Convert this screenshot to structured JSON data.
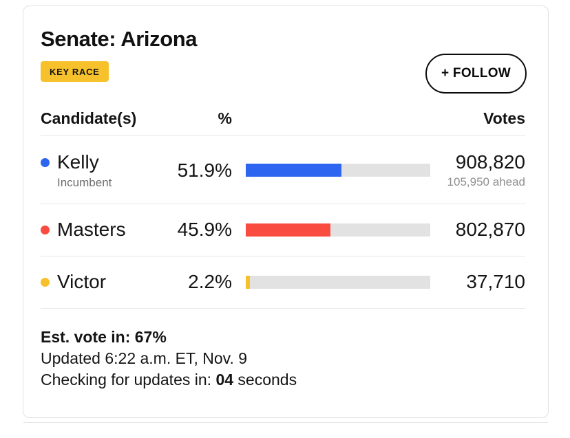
{
  "race": {
    "title": "Senate: Arizona",
    "badge": {
      "label": "KEY RACE",
      "color": "#F6C12B"
    },
    "follow_button": "+ FOLLOW",
    "table": {
      "headers": {
        "candidate": "Candidate(s)",
        "percent": "%",
        "votes": "Votes"
      },
      "track_color": "#E2E2E2",
      "candidates": [
        {
          "name": "Kelly",
          "note": "Incumbent",
          "percent": "51.9%",
          "bar_width": "51.9%",
          "color": "#2D64F0",
          "votes": "908,820",
          "margin_note": "105,950 ahead"
        },
        {
          "name": "Masters",
          "percent": "45.9%",
          "bar_width": "45.9%",
          "color": "#FA4B41",
          "votes": "802,870"
        },
        {
          "name": "Victor",
          "percent": "2.2%",
          "bar_width": "2.2%",
          "color": "#F6C12B",
          "votes": "37,710"
        }
      ]
    },
    "footer": {
      "est_vote": "Est. vote in: 67%",
      "updated": "Updated 6:22 a.m. ET, Nov. 9",
      "checking_prefix": "Checking for updates in: ",
      "countdown": "04",
      "checking_suffix": " seconds"
    }
  }
}
